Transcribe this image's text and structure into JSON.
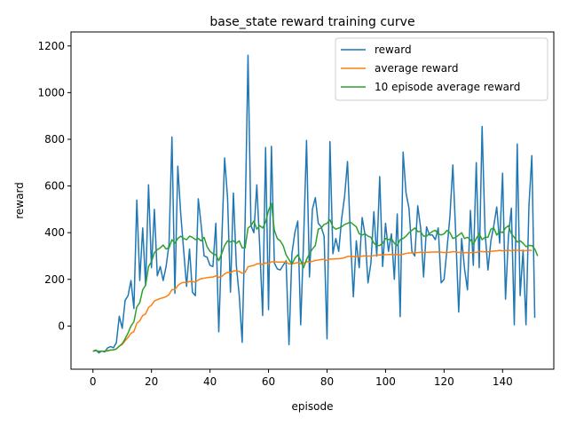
{
  "chart_data": {
    "type": "line",
    "title": "base_state reward training curve",
    "xlabel": "episode",
    "ylabel": "reward",
    "xlim": [
      -7.5,
      157.5
    ],
    "ylim": [
      -185,
      1260
    ],
    "xticks": [
      0,
      20,
      40,
      60,
      80,
      100,
      120,
      140
    ],
    "yticks": [
      0,
      200,
      400,
      600,
      800,
      1000,
      1200
    ],
    "grid": false,
    "legend_position": "top-right",
    "series": [
      {
        "name": "reward",
        "color": "#1f77b4",
        "values": [
          -108,
          -103,
          -115,
          -107,
          -111,
          -94,
          -88,
          -93,
          -72,
          42,
          -10,
          110,
          130,
          195,
          75,
          540,
          195,
          420,
          175,
          605,
          250,
          500,
          215,
          255,
          195,
          255,
          350,
          810,
          140,
          685,
          480,
          325,
          170,
          330,
          145,
          130,
          545,
          430,
          300,
          295,
          260,
          255,
          440,
          -25,
          355,
          720,
          550,
          145,
          570,
          260,
          130,
          -70,
          445,
          1160,
          430,
          400,
          605,
          340,
          45,
          765,
          70,
          770,
          270,
          245,
          240,
          260,
          280,
          -80,
          310,
          400,
          450,
          5,
          370,
          795,
          210,
          500,
          550,
          440,
          425,
          385,
          -55,
          790,
          310,
          375,
          320,
          460,
          555,
          705,
          380,
          125,
          365,
          250,
          465,
          390,
          185,
          270,
          490,
          300,
          640,
          255,
          440,
          320,
          395,
          200,
          480,
          40,
          745,
          570,
          505,
          320,
          300,
          515,
          420,
          210,
          425,
          390,
          390,
          370,
          420,
          185,
          200,
          330,
          470,
          690,
          390,
          60,
          375,
          245,
          155,
          495,
          260,
          700,
          250,
          855,
          405,
          240,
          365,
          430,
          510,
          355,
          655,
          115,
          385,
          505,
          5,
          780,
          130,
          325,
          5,
          515,
          730,
          35
        ],
        "x_start": 0
      },
      {
        "name": "average reward",
        "color": "#ff7f0e",
        "values": [
          -108,
          -105,
          -109,
          -108,
          -108,
          -106,
          -103,
          -102,
          -98,
          -86,
          -79,
          -63,
          -49,
          -31,
          -24,
          12,
          22,
          45,
          52,
          80,
          89,
          107,
          113,
          118,
          121,
          126,
          135,
          156,
          156,
          173,
          183,
          187,
          186,
          191,
          190,
          188,
          197,
          203,
          205,
          207,
          209,
          210,
          215,
          209,
          212,
          223,
          230,
          228,
          236,
          236,
          234,
          226,
          230,
          254,
          257,
          260,
          266,
          267,
          263,
          271,
          267,
          275,
          275,
          274,
          274,
          274,
          274,
          266,
          267,
          269,
          272,
          267,
          268,
          276,
          274,
          277,
          281,
          283,
          285,
          286,
          281,
          287,
          287,
          288,
          288,
          290,
          293,
          298,
          299,
          297,
          298,
          298,
          300,
          301,
          300,
          300,
          302,
          302,
          305,
          304,
          306,
          306,
          307,
          305,
          307,
          304,
          308,
          311,
          313,
          313,
          313,
          315,
          316,
          315,
          316,
          316,
          317,
          317,
          318,
          316,
          315,
          315,
          316,
          319,
          318,
          315,
          316,
          314,
          315,
          314,
          316,
          315,
          319,
          319,
          318,
          318,
          320,
          321,
          322,
          324,
          322,
          323,
          325,
          322,
          325,
          324,
          324,
          322,
          323,
          325,
          323
        ],
        "x_start": 0
      },
      {
        "name": "10 episode average reward",
        "color": "#2ca02c",
        "values": [
          -108,
          -105,
          -109,
          -108,
          -108,
          -106,
          -103,
          -102,
          -98,
          -86,
          -76,
          -55,
          -30,
          0,
          18,
          82,
          100,
          155,
          175,
          255,
          275,
          315,
          327,
          335,
          347,
          330,
          335,
          370,
          355,
          375,
          385,
          375,
          370,
          385,
          380,
          370,
          375,
          365,
          380,
          340,
          320,
          310,
          305,
          280,
          310,
          345,
          365,
          360,
          365,
          355,
          365,
          335,
          335,
          420,
          430,
          450,
          415,
          430,
          420,
          445,
          495,
          525,
          410,
          375,
          365,
          345,
          305,
          285,
          265,
          290,
          305,
          280,
          250,
          285,
          310,
          330,
          345,
          415,
          420,
          435,
          440,
          455,
          425,
          415,
          420,
          425,
          435,
          440,
          445,
          435,
          425,
          395,
          390,
          395,
          385,
          380,
          355,
          345,
          345,
          355,
          375,
          370,
          375,
          355,
          345,
          370,
          375,
          385,
          400,
          410,
          420,
          405,
          405,
          385,
          385,
          395,
          405,
          410,
          395,
          390,
          395,
          410,
          400,
          375,
          380,
          390,
          400,
          375,
          380,
          370,
          350,
          375,
          395,
          370,
          380,
          380,
          415,
          420,
          390,
          405,
          400,
          420,
          430,
          395,
          380,
          360,
          365,
          355,
          340,
          345,
          345,
          330,
          300
        ],
        "x_start": 0
      }
    ]
  }
}
